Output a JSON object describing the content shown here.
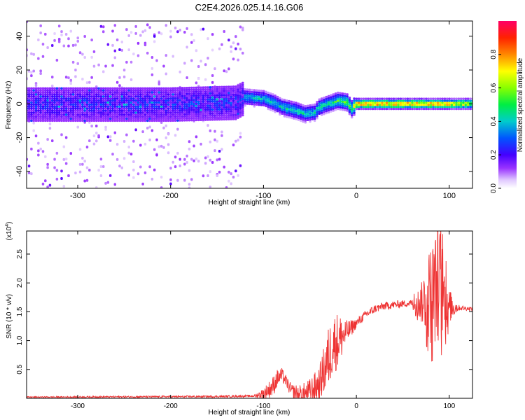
{
  "chart_data": [
    {
      "type": "heatmap",
      "title": "C2E4.2026.025.14.16.G06",
      "xlabel": "Height of straight line (km)",
      "ylabel": "Frequency (Hz)",
      "xlim": [
        -355,
        125
      ],
      "ylim": [
        -50,
        49
      ],
      "xticks": [
        -300,
        -200,
        -100,
        0,
        100
      ],
      "yticks": [
        -40,
        -20,
        0,
        20,
        40
      ],
      "colorbar": {
        "label": "Normalized spectral amplitude",
        "range": [
          0,
          1
        ],
        "ticks": [
          "0.0",
          "0.2",
          "0.4",
          "0.6",
          "0.8"
        ],
        "tick_values": [
          0.0,
          0.2,
          0.4,
          0.6,
          0.8
        ]
      },
      "ridge": {
        "description_points_x": [
          -355,
          -200,
          -130,
          -120,
          -100,
          -90,
          -80,
          -65,
          -55,
          -45,
          -40,
          -30,
          -20,
          -10,
          -5,
          0,
          50,
          100,
          125
        ],
        "description_points_y": [
          0,
          0,
          1,
          4,
          3,
          1,
          -2,
          -4,
          -6,
          -5,
          -2,
          0,
          2,
          1,
          -3,
          0,
          0,
          0,
          0
        ],
        "amplitude": [
          0.15,
          0.15,
          0.2,
          0.4,
          0.45,
          0.45,
          0.45,
          0.5,
          0.45,
          0.45,
          0.5,
          0.5,
          0.55,
          0.6,
          0.6,
          0.9,
          0.9,
          0.85,
          0.75
        ]
      }
    },
    {
      "type": "line",
      "title": "",
      "xlabel": "Height of straight line (km)",
      "ylabel": "SNR (10 * v/v)",
      "yscale_label_a": "(x10",
      "yscale_label_b": "4",
      "yscale_label_c": ")",
      "xlim": [
        -355,
        125
      ],
      "ylim": [
        0,
        2.9
      ],
      "xticks": [
        -300,
        -200,
        -100,
        0,
        100
      ],
      "yticks": [
        0.5,
        1.0,
        1.5,
        2.0,
        2.5
      ],
      "ytick_labels": [
        "0.5",
        "1.0",
        "1.5",
        "2.0",
        "2.5"
      ],
      "color": "#ee3333",
      "envelope_x": [
        -355,
        -150,
        -110,
        -100,
        -90,
        -85,
        -80,
        -75,
        -70,
        -60,
        -50,
        -40,
        -30,
        -25,
        -20,
        -10,
        0,
        10,
        20,
        30,
        40,
        50,
        60,
        70,
        75,
        80,
        85,
        90,
        95,
        100,
        105,
        110,
        125
      ],
      "envelope_y": [
        0.02,
        0.03,
        0.04,
        0.08,
        0.2,
        0.35,
        0.4,
        0.28,
        0.12,
        0.05,
        0.1,
        0.25,
        0.7,
        0.95,
        1.0,
        1.15,
        1.3,
        1.45,
        1.55,
        1.6,
        1.62,
        1.64,
        1.65,
        1.65,
        1.75,
        1.8,
        1.9,
        2.0,
        1.7,
        1.6,
        1.58,
        1.57,
        1.55
      ],
      "noise_amplitude_x": [
        -355,
        -110,
        -90,
        -75,
        -40,
        -30,
        -20,
        -10,
        0,
        60,
        70,
        80,
        90,
        100,
        110,
        125
      ],
      "noise_amplitude_y": [
        0.01,
        0.02,
        0.18,
        0.1,
        0.3,
        0.55,
        0.5,
        0.2,
        0.08,
        0.06,
        0.35,
        0.9,
        1.0,
        0.3,
        0.05,
        0.03
      ]
    }
  ]
}
